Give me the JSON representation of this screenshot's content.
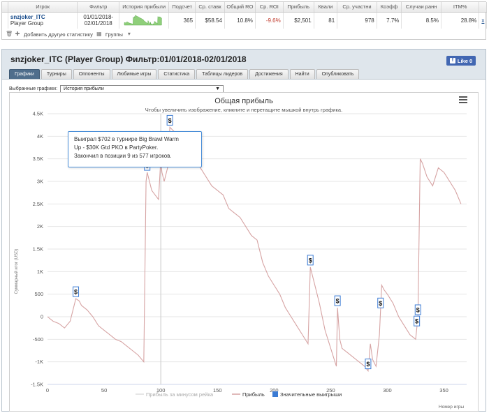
{
  "stats": {
    "headers": [
      "Игрок",
      "Фильтр",
      "История прибыли",
      "Подсчет",
      "Ср. ставк",
      "Общий RO",
      "Ср. ROI",
      "Прибыль",
      "Квали",
      "Ср. участни",
      "Коэфф",
      "Случаи ранн",
      "ITM%"
    ],
    "row": {
      "player_name": "snzjoker_ITC",
      "player_group": "Player Group",
      "filter_line1": "01/01/2018-",
      "filter_line2": "02/01/2018",
      "count": "365",
      "avg_stake": "$58.54",
      "total_roi": "10.8%",
      "avg_roi": "-9.6%",
      "profit": "$2,501",
      "quali": "81",
      "avg_entrants": "978",
      "coeff": "7.7%",
      "early": "8.5%",
      "itm": "28.8%",
      "close": "x"
    },
    "toolbar": {
      "add_stat": "Добавить другую статистику",
      "groups": "Группы"
    }
  },
  "panel": {
    "title": "snzjoker_ITC (Player Group) Фильтр:01/01/2018-02/01/2018",
    "like": "Like 0",
    "tabs": [
      "Графики",
      "Турниры",
      "Оппоненты",
      "Любимые игры",
      "Статистика",
      "Таблицы лидеров",
      "Достижения",
      "Найти",
      "Опубликовать"
    ],
    "active_tab": 0,
    "selector_label": "Выбранные графики:",
    "selector_value": "История прибыли"
  },
  "tooltip": {
    "line1": "Выиграл $702 в турнире Big Brawl Warm",
    "line2": "Up - $30K Gtd PKO в PartyPoker.",
    "line3": "Закончил в позиции 9 из 577 игроков."
  },
  "colors": {
    "profit_line": "#d6a3a3",
    "rake_line": "#dddddd",
    "marker": "#3b7bd4",
    "tab_active": "#4f6e8c"
  },
  "chart_data": {
    "type": "line",
    "title": "Общая прибыль",
    "subtitle": "Чтобы увеличить изображение, кликните и перетащите мышкой внутрь графика.",
    "xlabel": "Номер игры",
    "ylabel": "Суммарный итог (USD)",
    "xlim": [
      0,
      370
    ],
    "ylim": [
      -1500,
      4500
    ],
    "x_ticks": [
      0,
      50,
      100,
      150,
      200,
      250,
      300,
      350
    ],
    "y_ticks": [
      -1500,
      -1000,
      -500,
      0,
      500,
      1000,
      1500,
      2000,
      2500,
      3000,
      3500,
      4000,
      4500
    ],
    "y_tick_labels": [
      "-1.5K",
      "-1K",
      "-500",
      "0",
      "500",
      "1K",
      "1.5K",
      "2K",
      "2.5K",
      "3K",
      "3.5K",
      "4K",
      "4.5K"
    ],
    "grid": true,
    "legend": [
      "Прибыль за минусом рейка",
      "Прибыль",
      "Значительные выигрыши"
    ],
    "legend_position": "bottom",
    "hover_x": 100,
    "series": [
      {
        "name": "Прибыль",
        "x": [
          0,
          5,
          10,
          15,
          20,
          22,
          25,
          28,
          30,
          35,
          40,
          45,
          50,
          55,
          60,
          65,
          70,
          75,
          80,
          85,
          87,
          88,
          90,
          92,
          95,
          98,
          100,
          101,
          103,
          106,
          108,
          110,
          112,
          115,
          120,
          125,
          130,
          135,
          140,
          145,
          150,
          155,
          160,
          165,
          170,
          175,
          180,
          185,
          190,
          195,
          200,
          205,
          210,
          215,
          220,
          225,
          230,
          232,
          235,
          240,
          245,
          250,
          255,
          256,
          258,
          260,
          265,
          270,
          275,
          280,
          283,
          285,
          287,
          290,
          293,
          295,
          297,
          300,
          305,
          310,
          315,
          320,
          325,
          327,
          329,
          331,
          335,
          340,
          345,
          350,
          355,
          360,
          365
        ],
        "y": [
          0,
          -100,
          -150,
          -250,
          -100,
          100,
          400,
          350,
          250,
          150,
          0,
          -200,
          -300,
          -400,
          -500,
          -550,
          -650,
          -750,
          -850,
          -1000,
          3000,
          3200,
          3000,
          2800,
          2700,
          2600,
          3500,
          3200,
          3000,
          3300,
          4200,
          4150,
          4100,
          3900,
          3700,
          3500,
          3450,
          3300,
          3100,
          2900,
          2800,
          2700,
          2400,
          2300,
          2200,
          2000,
          1800,
          1700,
          1200,
          900,
          700,
          500,
          200,
          0,
          -200,
          -400,
          -600,
          1100,
          800,
          300,
          -300,
          -700,
          -1100,
          200,
          -500,
          -700,
          -800,
          -900,
          -1000,
          -1100,
          -1200,
          -600,
          -950,
          -1100,
          -400,
          700,
          600,
          500,
          300,
          0,
          -200,
          -400,
          -500,
          0,
          3500,
          3400,
          3100,
          2900,
          3300,
          3200,
          3000,
          2800,
          2500
        ]
      }
    ],
    "big_wins_x": [
      25,
      88,
      108,
      232,
      256,
      283,
      294,
      326,
      327
    ]
  }
}
